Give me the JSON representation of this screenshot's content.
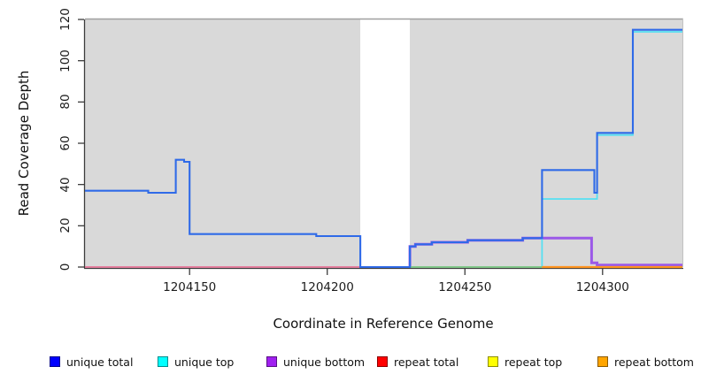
{
  "chart_data": {
    "type": "line",
    "subtype": "step-coverage-plot",
    "title": "",
    "xlabel": "Coordinate in Reference Genome",
    "ylabel": "Read Coverage Depth",
    "xlim": [
      1204112,
      1204329
    ],
    "ylim": [
      0,
      120
    ],
    "xticks": [
      1204150,
      1204200,
      1204250,
      1204300
    ],
    "yticks": [
      0,
      20,
      40,
      60,
      80,
      100,
      120
    ],
    "grid": "off",
    "plot_bg_color": "#d9d9d9",
    "gap_bg_color": "#ffffff",
    "data_regions": [
      [
        1204112,
        1204212
      ],
      [
        1204230,
        1204329
      ]
    ],
    "gap_region": [
      1204212,
      1204230
    ],
    "legend_position": "bottom",
    "series": [
      {
        "name": "unique bottom",
        "legend_color": "#a020f0",
        "line_color": "#9b59e8",
        "line_width": 3,
        "points": [
          [
            1204230,
            0
          ],
          [
            1204230,
            10
          ],
          [
            1204232,
            10
          ],
          [
            1204232,
            11
          ],
          [
            1204238,
            11
          ],
          [
            1204238,
            12
          ],
          [
            1204251,
            12
          ],
          [
            1204251,
            13
          ],
          [
            1204271,
            13
          ],
          [
            1204271,
            14
          ],
          [
            1204296,
            14
          ],
          [
            1204296,
            2
          ],
          [
            1204298,
            2
          ],
          [
            1204298,
            1
          ],
          [
            1204329,
            1
          ]
        ]
      },
      {
        "name": "repeat total",
        "legend_color": "#ff0000",
        "line_color": "#e8608a",
        "line_width": 1.6,
        "points": [
          [
            1204112,
            0
          ],
          [
            1204212,
            0
          ]
        ]
      },
      {
        "name": "unique top",
        "legend_color": "#00ffff",
        "line_color": "#55e0f2",
        "line_width": 1.8,
        "points": [
          [
            1204278,
            0
          ],
          [
            1204278,
            33
          ],
          [
            1204298,
            33
          ],
          [
            1204298,
            64
          ],
          [
            1204311,
            64
          ],
          [
            1204311,
            114
          ],
          [
            1204329,
            114
          ]
        ]
      },
      {
        "name": "repeat top",
        "legend_color": "#ffff00",
        "line_color": "#76c57e",
        "line_width": 1.7,
        "points": [
          [
            1204230,
            0
          ],
          [
            1204278,
            0
          ]
        ]
      },
      {
        "name": "repeat bottom",
        "legend_color": "#ffa500",
        "line_color": "#ff9520",
        "line_width": 2.2,
        "points": [
          [
            1204278,
            0
          ],
          [
            1204329,
            0
          ]
        ]
      },
      {
        "name": "unique total",
        "legend_color": "#0000ff",
        "line_color": "#2f6ae8",
        "line_width": 2.1,
        "points": [
          [
            1204112,
            37
          ],
          [
            1204135,
            37
          ],
          [
            1204135,
            36
          ],
          [
            1204145,
            36
          ],
          [
            1204145,
            52
          ],
          [
            1204148,
            52
          ],
          [
            1204148,
            51
          ],
          [
            1204150,
            51
          ],
          [
            1204150,
            16
          ],
          [
            1204196,
            16
          ],
          [
            1204196,
            15
          ],
          [
            1204212,
            15
          ],
          [
            1204212,
            0
          ],
          [
            1204230,
            0
          ],
          [
            1204230,
            10
          ],
          [
            1204232,
            10
          ],
          [
            1204232,
            11
          ],
          [
            1204238,
            11
          ],
          [
            1204238,
            12
          ],
          [
            1204251,
            12
          ],
          [
            1204251,
            13
          ],
          [
            1204271,
            13
          ],
          [
            1204271,
            14
          ],
          [
            1204278,
            14
          ],
          [
            1204278,
            47
          ],
          [
            1204297,
            47
          ],
          [
            1204297,
            36
          ],
          [
            1204298,
            36
          ],
          [
            1204298,
            65
          ],
          [
            1204311,
            65
          ],
          [
            1204311,
            115
          ],
          [
            1204329,
            115
          ]
        ]
      }
    ],
    "legend": [
      {
        "label": "unique total",
        "color": "#0000ff"
      },
      {
        "label": "unique top",
        "color": "#00ffff"
      },
      {
        "label": "unique bottom",
        "color": "#a020f0"
      },
      {
        "label": "repeat total",
        "color": "#ff0000"
      },
      {
        "label": "repeat top",
        "color": "#ffff00"
      },
      {
        "label": "repeat bottom",
        "color": "#ffa500"
      }
    ],
    "axis_color": "#3c3c3c",
    "plot_border_top_color": "#a0a0a0"
  }
}
